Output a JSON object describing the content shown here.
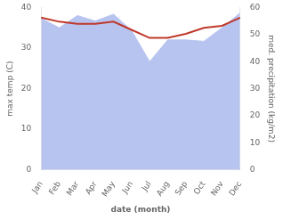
{
  "chart_data": {
    "type": "line",
    "categories": [
      "Jan",
      "Feb",
      "Mar",
      "Apr",
      "May",
      "Jun",
      "Jul",
      "Aug",
      "Sep",
      "Oct",
      "Nov",
      "Dec"
    ],
    "xlabel": "date (month)",
    "ylabel": "max temp (C)",
    "y2label": "med. precipitation (kg/m2)",
    "series": [
      {
        "type": "area",
        "axis": "y2",
        "color": "#b8c4f0",
        "values": [
          56.0,
          52.5,
          57.0,
          55.0,
          57.5,
          51.5,
          40.0,
          48.0,
          48.0,
          47.5,
          52.5,
          58.0
        ]
      },
      {
        "type": "line",
        "color": "#c0392b",
        "values": [
          37.5,
          36.5,
          36.0,
          36.0,
          36.5,
          34.5,
          32.5,
          32.5,
          33.5,
          35.0,
          35.5,
          37.5
        ]
      }
    ],
    "ylim": [
      0,
      40
    ],
    "yticks": [
      0,
      10,
      20,
      30,
      40
    ],
    "y2lim": [
      0,
      60
    ],
    "y2ticks": [
      0,
      10,
      20,
      30,
      40,
      50,
      60
    ],
    "grid": false
  }
}
